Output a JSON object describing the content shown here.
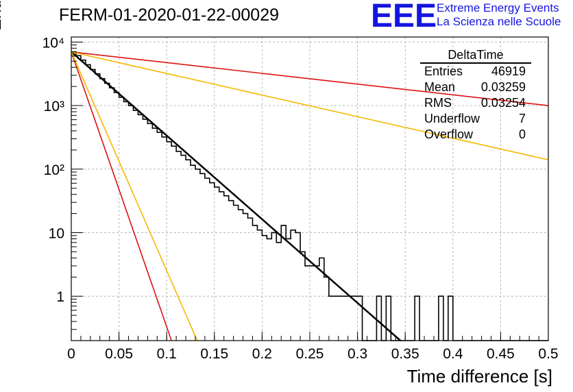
{
  "title": "FERM-01-2020-01-22-00029",
  "logo": {
    "text": "EEE",
    "line1": "Extreme Energy Events",
    "line2": "La Scienza nelle Scuole",
    "color": "#1515e0"
  },
  "stats": {
    "title": "DeltaTime",
    "rows": [
      {
        "label": "Entries",
        "value": "46919"
      },
      {
        "label": "Mean",
        "value": "0.03259"
      },
      {
        "label": "RMS",
        "value": "0.03254"
      },
      {
        "label": "Underflow",
        "value": "7"
      },
      {
        "label": "Overflow",
        "value": "0"
      }
    ]
  },
  "chart_data": {
    "type": "line",
    "title": "FERM-01-2020-01-22-00029",
    "xlabel": "Time difference [s]",
    "ylabel": "Entries/bin",
    "xlim": [
      0,
      0.5
    ],
    "ylim": [
      0.2,
      12000
    ],
    "yscale": "log",
    "grid": true,
    "x_ticks": [
      "0",
      "0.05",
      "0.1",
      "0.15",
      "0.2",
      "0.25",
      "0.3",
      "0.35",
      "0.4",
      "0.45",
      "0.5"
    ],
    "y_ticks": [
      {
        "value": 1,
        "label": "1"
      },
      {
        "value": 10,
        "label": "10"
      },
      {
        "value": 100,
        "label": "10²"
      },
      {
        "value": 1000,
        "label": "10³"
      },
      {
        "value": 10000,
        "label": "10⁴"
      }
    ],
    "histogram": {
      "name": "DeltaTime",
      "color": "#000000",
      "bin_width": 0.005,
      "x_start": 0,
      "counts": [
        7000,
        6100,
        5200,
        4400,
        3700,
        3150,
        2650,
        2250,
        1900,
        1600,
        1350,
        1150,
        1000,
        840,
        720,
        610,
        520,
        440,
        380,
        320,
        270,
        230,
        190,
        165,
        140,
        115,
        100,
        85,
        72,
        61,
        52,
        44,
        38,
        32,
        27,
        23,
        20,
        17,
        13,
        11,
        9,
        8,
        10,
        7,
        13,
        8,
        11,
        10,
        5,
        3,
        3,
        3,
        4,
        2,
        1,
        1,
        1,
        1,
        1,
        1,
        1,
        0,
        0,
        0,
        1,
        0,
        1,
        0,
        0,
        0,
        0,
        0,
        1,
        0,
        0,
        0,
        0,
        1,
        0,
        1,
        0,
        0,
        0,
        0,
        0,
        0,
        0,
        0,
        0,
        0,
        0,
        0,
        0,
        0,
        0,
        0,
        0,
        0,
        0,
        0
      ]
    },
    "series": [
      {
        "color": "#000000",
        "x": [
          0,
          0.345
        ],
        "y": [
          7000,
          0.2
        ],
        "width": 2.5
      },
      {
        "color": "#dd1111",
        "x": [
          0,
          0.5
        ],
        "y": [
          7000,
          1000
        ],
        "width": 1.6
      },
      {
        "color": "#f5b800",
        "x": [
          0,
          0.5
        ],
        "y": [
          7000,
          140
        ],
        "width": 1.6
      },
      {
        "color": "#dd1111",
        "x": [
          0,
          0.105
        ],
        "y": [
          7000,
          0.2
        ],
        "width": 1.6
      },
      {
        "color": "#f5b800",
        "x": [
          0,
          0.132
        ],
        "y": [
          7000,
          0.2
        ],
        "width": 1.6
      }
    ]
  }
}
